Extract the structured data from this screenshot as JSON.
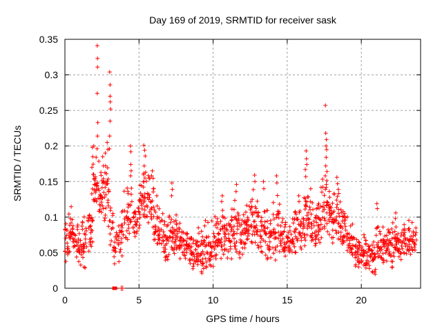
{
  "figure": {
    "background": "#ffffff",
    "text_color": "#000000"
  },
  "chart_data": {
    "type": "scatter",
    "title": "Day 169 of 2019, SRMTID for receiver sask",
    "xlabel": "GPS time / hours",
    "ylabel": "SRMTID / TECUs",
    "series_name": "SRMTID",
    "xlim": [
      0,
      24
    ],
    "ylim": [
      0,
      0.35
    ],
    "xtick_values": [
      0,
      5,
      10,
      15,
      20
    ],
    "xtick_labels": [
      "0",
      "5",
      "10",
      "15",
      "20"
    ],
    "ytick_values": [
      0,
      0.05,
      0.1,
      0.15,
      0.2,
      0.25,
      0.3,
      0.35
    ],
    "ytick_labels": [
      "0",
      "0.05",
      "0.1",
      "0.15",
      "0.2",
      "0.25",
      "0.3",
      "0.35"
    ],
    "grid": true,
    "legend": "none",
    "marker": "plus",
    "marker_size": 7,
    "point_color": "#ff0000",
    "grid_color": "#a0a0a0",
    "axis_color": "#000000",
    "seed": 42,
    "peak_points": [
      [
        2.18,
        0.341
      ],
      [
        2.2,
        0.323
      ],
      [
        2.2,
        0.311
      ],
      [
        2.18,
        0.274
      ],
      [
        2.22,
        0.233
      ],
      [
        2.2,
        0.214
      ],
      [
        2.17,
        0.196
      ],
      [
        3.02,
        0.304
      ],
      [
        3.05,
        0.286
      ],
      [
        3.05,
        0.27
      ],
      [
        3.06,
        0.262
      ],
      [
        3.08,
        0.252
      ],
      [
        3.05,
        0.235
      ],
      [
        3.02,
        0.214
      ],
      [
        3.0,
        0.196
      ],
      [
        1.85,
        0.198
      ],
      [
        1.88,
        0.185
      ],
      [
        1.82,
        0.17
      ],
      [
        1.9,
        0.16
      ],
      [
        1.95,
        0.2
      ],
      [
        2.55,
        0.185
      ],
      [
        2.6,
        0.172
      ],
      [
        2.72,
        0.19
      ],
      [
        2.85,
        0.205
      ],
      [
        2.9,
        0.195
      ],
      [
        4.42,
        0.2
      ],
      [
        4.45,
        0.192
      ],
      [
        4.44,
        0.174
      ],
      [
        4.47,
        0.165
      ],
      [
        4.43,
        0.158
      ],
      [
        5.32,
        0.201
      ],
      [
        5.38,
        0.194
      ],
      [
        5.42,
        0.186
      ],
      [
        5.35,
        0.172
      ],
      [
        5.45,
        0.163
      ],
      [
        5.4,
        0.155
      ],
      [
        5.3,
        0.15
      ],
      [
        5.9,
        0.165
      ],
      [
        5.85,
        0.158
      ],
      [
        6.2,
        0.13
      ],
      [
        7.22,
        0.148
      ],
      [
        7.25,
        0.139
      ],
      [
        7.2,
        0.13
      ],
      [
        10.62,
        0.13
      ],
      [
        10.58,
        0.122
      ],
      [
        11.58,
        0.146
      ],
      [
        11.55,
        0.136
      ],
      [
        12.8,
        0.159
      ],
      [
        12.82,
        0.15
      ],
      [
        13.4,
        0.15
      ],
      [
        13.42,
        0.14
      ],
      [
        14.28,
        0.158
      ],
      [
        14.3,
        0.148
      ],
      [
        15.78,
        0.13
      ],
      [
        15.8,
        0.122
      ],
      [
        16.28,
        0.193
      ],
      [
        16.3,
        0.182
      ],
      [
        16.32,
        0.174
      ],
      [
        16.22,
        0.167
      ],
      [
        16.25,
        0.157
      ],
      [
        17.58,
        0.257
      ],
      [
        17.6,
        0.218
      ],
      [
        17.65,
        0.209
      ],
      [
        17.62,
        0.2
      ],
      [
        17.66,
        0.195
      ],
      [
        17.63,
        0.184
      ],
      [
        17.6,
        0.172
      ],
      [
        17.68,
        0.164
      ],
      [
        17.57,
        0.158
      ],
      [
        18.35,
        0.156
      ],
      [
        18.4,
        0.147
      ],
      [
        18.45,
        0.139
      ],
      [
        21.05,
        0.119
      ],
      [
        21.08,
        0.112
      ],
      [
        22.32,
        0.106
      ],
      [
        22.3,
        0.098
      ]
    ],
    "band_bins": [
      [
        0.0,
        0.25,
        0.03,
        0.115,
        16
      ],
      [
        0.25,
        0.5,
        0.04,
        0.12,
        17
      ],
      [
        0.5,
        0.75,
        0.042,
        0.105,
        16
      ],
      [
        0.75,
        1.0,
        0.035,
        0.1,
        16
      ],
      [
        1.0,
        1.25,
        0.028,
        0.1,
        16
      ],
      [
        1.25,
        1.5,
        0.025,
        0.105,
        16
      ],
      [
        1.5,
        1.75,
        0.028,
        0.13,
        16
      ],
      [
        1.75,
        2.0,
        0.055,
        0.19,
        17
      ],
      [
        2.0,
        2.25,
        0.075,
        0.21,
        18
      ],
      [
        2.25,
        2.5,
        0.085,
        0.19,
        18
      ],
      [
        2.5,
        2.75,
        0.08,
        0.175,
        17
      ],
      [
        2.75,
        3.0,
        0.085,
        0.2,
        17
      ],
      [
        3.0,
        3.25,
        0.045,
        0.13,
        14
      ],
      [
        3.25,
        3.5,
        0.03,
        0.1,
        12
      ],
      [
        3.5,
        3.75,
        0.032,
        0.105,
        12
      ],
      [
        3.75,
        4.0,
        0.04,
        0.12,
        13
      ],
      [
        4.0,
        4.25,
        0.055,
        0.15,
        15
      ],
      [
        4.25,
        4.5,
        0.065,
        0.155,
        15
      ],
      [
        4.5,
        4.75,
        0.06,
        0.135,
        14
      ],
      [
        4.75,
        5.0,
        0.065,
        0.13,
        14
      ],
      [
        5.0,
        5.25,
        0.075,
        0.16,
        16
      ],
      [
        5.25,
        5.5,
        0.085,
        0.165,
        16
      ],
      [
        5.5,
        5.75,
        0.08,
        0.17,
        16
      ],
      [
        5.75,
        6.0,
        0.075,
        0.165,
        16
      ],
      [
        6.0,
        6.25,
        0.055,
        0.13,
        16
      ],
      [
        6.25,
        6.5,
        0.048,
        0.12,
        16
      ],
      [
        6.5,
        6.75,
        0.042,
        0.11,
        16
      ],
      [
        6.75,
        7.0,
        0.038,
        0.105,
        16
      ],
      [
        7.0,
        7.25,
        0.04,
        0.12,
        16
      ],
      [
        7.25,
        7.5,
        0.042,
        0.115,
        16
      ],
      [
        7.5,
        7.75,
        0.045,
        0.112,
        16
      ],
      [
        7.75,
        8.0,
        0.038,
        0.1,
        16
      ],
      [
        8.0,
        8.25,
        0.032,
        0.098,
        16
      ],
      [
        8.25,
        8.5,
        0.028,
        0.092,
        16
      ],
      [
        8.5,
        8.75,
        0.022,
        0.088,
        16
      ],
      [
        8.75,
        9.0,
        0.018,
        0.092,
        16
      ],
      [
        9.0,
        9.25,
        0.014,
        0.098,
        16
      ],
      [
        9.25,
        9.5,
        0.022,
        0.105,
        16
      ],
      [
        9.5,
        9.75,
        0.015,
        0.11,
        16
      ],
      [
        9.75,
        10.0,
        0.022,
        0.1,
        16
      ],
      [
        10.0,
        10.25,
        0.028,
        0.102,
        16
      ],
      [
        10.25,
        10.5,
        0.035,
        0.108,
        16
      ],
      [
        10.5,
        10.75,
        0.038,
        0.118,
        16
      ],
      [
        10.75,
        11.0,
        0.04,
        0.108,
        16
      ],
      [
        11.0,
        11.25,
        0.02,
        0.112,
        16
      ],
      [
        11.25,
        11.5,
        0.045,
        0.13,
        16
      ],
      [
        11.5,
        11.75,
        0.045,
        0.128,
        16
      ],
      [
        11.75,
        12.0,
        0.04,
        0.118,
        16
      ],
      [
        12.0,
        12.25,
        0.045,
        0.125,
        16
      ],
      [
        12.25,
        12.5,
        0.05,
        0.135,
        17
      ],
      [
        12.5,
        12.75,
        0.055,
        0.145,
        17
      ],
      [
        12.75,
        13.0,
        0.05,
        0.138,
        16
      ],
      [
        13.0,
        13.25,
        0.045,
        0.125,
        16
      ],
      [
        13.25,
        13.5,
        0.04,
        0.138,
        16
      ],
      [
        13.5,
        13.75,
        0.038,
        0.12,
        16
      ],
      [
        13.75,
        14.0,
        0.032,
        0.105,
        16
      ],
      [
        14.0,
        14.25,
        0.038,
        0.122,
        16
      ],
      [
        14.25,
        14.5,
        0.042,
        0.14,
        16
      ],
      [
        14.5,
        14.75,
        0.032,
        0.115,
        16
      ],
      [
        14.75,
        15.0,
        0.028,
        0.098,
        16
      ],
      [
        15.0,
        15.25,
        0.035,
        0.1,
        16
      ],
      [
        15.25,
        15.5,
        0.04,
        0.108,
        16
      ],
      [
        15.5,
        15.75,
        0.045,
        0.122,
        16
      ],
      [
        15.75,
        16.0,
        0.048,
        0.135,
        16
      ],
      [
        16.0,
        16.25,
        0.055,
        0.15,
        17
      ],
      [
        16.25,
        16.5,
        0.06,
        0.15,
        17
      ],
      [
        16.5,
        16.75,
        0.055,
        0.145,
        16
      ],
      [
        16.75,
        17.0,
        0.05,
        0.132,
        16
      ],
      [
        17.0,
        17.25,
        0.055,
        0.14,
        16
      ],
      [
        17.25,
        17.5,
        0.065,
        0.16,
        16
      ],
      [
        17.5,
        17.75,
        0.075,
        0.16,
        17
      ],
      [
        17.75,
        18.0,
        0.065,
        0.155,
        16
      ],
      [
        18.0,
        18.25,
        0.058,
        0.148,
        16
      ],
      [
        18.25,
        18.5,
        0.055,
        0.14,
        16
      ],
      [
        18.5,
        18.75,
        0.05,
        0.13,
        16
      ],
      [
        18.75,
        19.0,
        0.045,
        0.12,
        16
      ],
      [
        19.0,
        19.25,
        0.038,
        0.105,
        16
      ],
      [
        19.25,
        19.5,
        0.032,
        0.095,
        16
      ],
      [
        19.5,
        19.75,
        0.028,
        0.088,
        16
      ],
      [
        19.75,
        20.0,
        0.028,
        0.082,
        16
      ],
      [
        20.0,
        20.25,
        0.026,
        0.08,
        16
      ],
      [
        20.25,
        20.5,
        0.022,
        0.075,
        16
      ],
      [
        20.5,
        20.75,
        0.016,
        0.07,
        16
      ],
      [
        20.75,
        21.0,
        0.012,
        0.075,
        16
      ],
      [
        21.0,
        21.25,
        0.028,
        0.105,
        16
      ],
      [
        21.25,
        21.5,
        0.032,
        0.09,
        16
      ],
      [
        21.5,
        21.75,
        0.036,
        0.086,
        16
      ],
      [
        21.75,
        22.0,
        0.038,
        0.092,
        16
      ],
      [
        22.0,
        22.25,
        0.012,
        0.095,
        16
      ],
      [
        22.25,
        22.5,
        0.038,
        0.1,
        16
      ],
      [
        22.5,
        22.75,
        0.03,
        0.092,
        16
      ],
      [
        22.75,
        23.0,
        0.048,
        0.096,
        16
      ],
      [
        23.0,
        23.25,
        0.04,
        0.1,
        15
      ],
      [
        23.25,
        23.5,
        0.045,
        0.095,
        14
      ],
      [
        23.5,
        23.75,
        0.05,
        0.09,
        12
      ]
    ],
    "zero_markers": {
      "squares_x": [
        3.31,
        3.4
      ],
      "plus_x": [
        3.8,
        3.9
      ]
    }
  }
}
